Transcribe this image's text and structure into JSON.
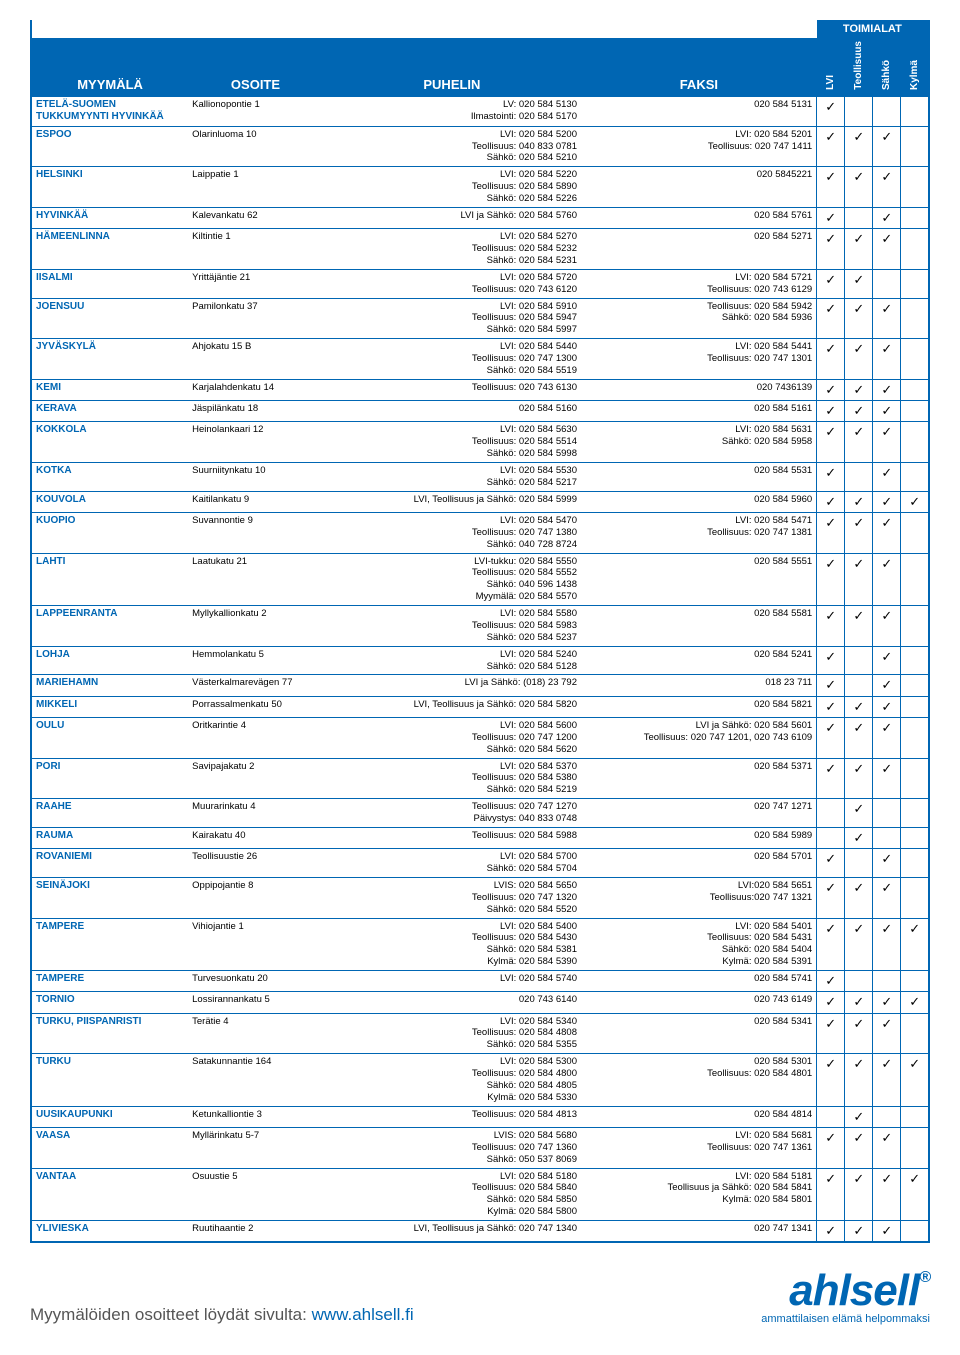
{
  "colors": {
    "brand": "#0066b3",
    "text": "#000000",
    "bg": "#ffffff"
  },
  "header": {
    "topcat": "TOIMIALAT",
    "cols": [
      "MYYMÄLÄ",
      "OSOITE",
      "PUHELIN",
      "FAKSI"
    ],
    "categories": [
      "LVI",
      "Teollisuus",
      "Sähkö",
      "Kylmä"
    ]
  },
  "rows": [
    {
      "store": "Etelä-Suomen Tukkumyynti\nHYVINKÄÄ",
      "addr": "Kallionopontie 1",
      "phone": "LV: 020 584 5130\nIlmastointi: 020 584 5170",
      "fax": "020 584 5131",
      "c": [
        1,
        0,
        0,
        0
      ]
    },
    {
      "store": "ESPOO",
      "addr": "Olarinluoma 10",
      "phone": "LVI: 020 584 5200\nTeollisuus: 040 833 0781\nSähkö: 020 584 5210",
      "fax": "LVI: 020 584 5201\nTeollisuus: 020 747 1411",
      "c": [
        1,
        1,
        1,
        0
      ]
    },
    {
      "store": "HELSINKI",
      "addr": "Laippatie 1",
      "phone": "LVI: 020 584 5220\nTeollisuus: 020 584 5890\nSähkö: 020 584 5226",
      "fax": "020 5845221",
      "c": [
        1,
        1,
        1,
        0
      ]
    },
    {
      "store": "HYVINKÄÄ",
      "addr": "Kalevankatu 62",
      "phone": "LVI ja Sähkö: 020 584 5760",
      "fax": "020 584 5761",
      "c": [
        1,
        0,
        1,
        0
      ]
    },
    {
      "store": "HÄMEENLINNA",
      "addr": "Kiltintie 1",
      "phone": "LVI: 020 584 5270\nTeollisuus: 020 584 5232\nSähkö: 020 584 5231",
      "fax": "020 584 5271",
      "c": [
        1,
        1,
        1,
        0
      ]
    },
    {
      "store": "IISALMI",
      "addr": "Yrittäjäntie 21",
      "phone": "LVI: 020 584 5720\nTeollisuus: 020 743 6120",
      "fax": "LVI: 020 584 5721\nTeollisuus: 020 743 6129",
      "c": [
        1,
        1,
        0,
        0
      ]
    },
    {
      "store": "JOENSUU",
      "addr": "Pamilonkatu 37",
      "phone": "LVI: 020 584 5910\nTeollisuus: 020 584 5947\nSähkö: 020 584 5997",
      "fax": "Teollisuus: 020 584 5942\nSähkö: 020 584 5936",
      "c": [
        1,
        1,
        1,
        0
      ]
    },
    {
      "store": "JYVÄSKYLÄ",
      "addr": "Ahjokatu 15 B",
      "phone": "LVI: 020 584 5440\nTeollisuus: 020 747 1300\nSähkö: 020 584 5519",
      "fax": "LVI: 020 584 5441\nTeollisuus: 020 747 1301",
      "c": [
        1,
        1,
        1,
        0
      ]
    },
    {
      "store": "KEMI",
      "addr": "Karjalahdenkatu 14",
      "phone": "Teollisuus: 020 743 6130",
      "fax": "020 7436139",
      "c": [
        1,
        1,
        1,
        0
      ]
    },
    {
      "store": "KERAVA",
      "addr": "Jäspilänkatu 18",
      "phone": "020 584 5160",
      "fax": "020 584 5161",
      "c": [
        1,
        1,
        1,
        0
      ]
    },
    {
      "store": "KOKKOLA",
      "addr": "Heinolankaari 12",
      "phone": "LVI: 020 584 5630\nTeollisuus: 020 584 5514\nSähkö: 020 584 5998",
      "fax": "LVI: 020 584 5631\nSähkö: 020 584 5958",
      "c": [
        1,
        1,
        1,
        0
      ]
    },
    {
      "store": "KOTKA",
      "addr": "Suurniitynkatu 10",
      "phone": "LVI: 020 584 5530\nSähkö: 020 584 5217",
      "fax": "020 584 5531",
      "c": [
        1,
        0,
        1,
        0
      ]
    },
    {
      "store": "KOUVOLA",
      "addr": "Kaitilankatu 9",
      "phone": "LVI, Teollisuus ja Sähkö: 020 584 5999",
      "fax": "020 584 5960",
      "c": [
        1,
        1,
        1,
        1
      ]
    },
    {
      "store": "KUOPIO",
      "addr": "Suvannontie 9",
      "phone": "LVI: 020 584 5470\nTeollisuus: 020 747 1380\nSähkö: 040 728 8724",
      "fax": "LVI: 020 584 5471\nTeollisuus: 020 747 1381",
      "c": [
        1,
        1,
        1,
        0
      ]
    },
    {
      "store": "LAHTI",
      "addr": "Laatukatu 21",
      "phone": "LVI-tukku: 020 584 5550\nTeollisuus: 020 584 5552\nSähkö: 040 596 1438\nMyymälä: 020 584 5570",
      "fax": "020 584 5551",
      "c": [
        1,
        1,
        1,
        0
      ]
    },
    {
      "store": "LAPPEENRANTA",
      "addr": "Myllykallionkatu 2",
      "phone": "LVI: 020 584 5580\nTeollisuus: 020 584 5983\nSähkö: 020 584 5237",
      "fax": "020 584 5581",
      "c": [
        1,
        1,
        1,
        0
      ]
    },
    {
      "store": "LOHJA",
      "addr": "Hemmolankatu 5",
      "phone": "LVI: 020 584 5240\nSähkö: 020 584 5128",
      "fax": "020 584 5241",
      "c": [
        1,
        0,
        1,
        0
      ]
    },
    {
      "store": "MARIEHAMN",
      "addr": "Västerkalmarevägen 77",
      "phone": "LVI ja Sähkö: (018) 23 792",
      "fax": "018 23 711",
      "c": [
        1,
        0,
        1,
        0
      ]
    },
    {
      "store": "MIKKELI",
      "addr": "Porrassalmenkatu 50",
      "phone": "LVI, Teollisuus ja Sähkö: 020 584 5820",
      "fax": "020 584 5821",
      "c": [
        1,
        1,
        1,
        0
      ]
    },
    {
      "store": "OULU",
      "addr": "Oritkarintie 4",
      "phone": "LVI: 020 584 5600\nTeollisuus: 020 747 1200\nSähkö: 020 584 5620",
      "fax": "LVI ja Sähkö: 020 584 5601\nTeollisuus: 020 747 1201, 020 743 6109",
      "c": [
        1,
        1,
        1,
        0
      ]
    },
    {
      "store": "PORI",
      "addr": "Savipajakatu 2",
      "phone": "LVI: 020 584 5370\nTeollisuus: 020 584 5380\nSähkö: 020 584 5219",
      "fax": "020 584 5371",
      "c": [
        1,
        1,
        1,
        0
      ]
    },
    {
      "store": "RAAHE",
      "addr": "Muurarinkatu 4",
      "phone": "Teollisuus: 020 747 1270\nPäivystys: 040 833 0748",
      "fax": "020 747 1271",
      "c": [
        0,
        1,
        0,
        0
      ]
    },
    {
      "store": "RAUMA",
      "addr": "Kairakatu 40",
      "phone": "Teollisuus: 020 584 5988",
      "fax": "020 584 5989",
      "c": [
        0,
        1,
        0,
        0
      ]
    },
    {
      "store": "ROVANIEMI",
      "addr": "Teollisuustie 26",
      "phone": "LVI: 020 584 5700\nSähkö: 020 584 5704",
      "fax": "020 584 5701",
      "c": [
        1,
        0,
        1,
        0
      ]
    },
    {
      "store": "SEINÄJOKI",
      "addr": "Oppipojantie 8",
      "phone": "LVIS: 020 584 5650\nTeollisuus: 020 747 1320\nSähkö: 020 584 5520",
      "fax": "LVI:020 584 5651\nTeollisuus:020 747 1321",
      "c": [
        1,
        1,
        1,
        0
      ]
    },
    {
      "store": "TAMPERE",
      "addr": "Vihiojantie 1",
      "phone": "LVI: 020 584 5400\nTeollisuus: 020 584 5430\nSähkö: 020 584 5381\nKylmä: 020 584 5390",
      "fax": "LVI: 020 584 5401\nTeollisuus: 020 584 5431\nSähkö: 020 584 5404\nKylmä: 020 584 5391",
      "c": [
        1,
        1,
        1,
        1
      ]
    },
    {
      "store": "TAMPERE",
      "addr": "Turvesuonkatu 20",
      "phone": "LVI: 020 584 5740",
      "fax": "020 584 5741",
      "c": [
        1,
        0,
        0,
        0
      ]
    },
    {
      "store": "TORNIO",
      "addr": "Lossirannankatu 5",
      "phone": "020 743 6140",
      "fax": "020 743 6149",
      "c": [
        1,
        1,
        1,
        1
      ]
    },
    {
      "store": "TURKU,\nPIISPANRISTI",
      "addr": "Terätie 4",
      "phone": "LVI: 020 584 5340\nTeollisuus: 020 584 4808\nSähkö: 020 584 5355",
      "fax": "020 584 5341",
      "c": [
        1,
        1,
        1,
        0
      ]
    },
    {
      "store": "TURKU",
      "addr": "Satakunnantie 164",
      "phone": "LVI: 020 584 5300\nTeollisuus: 020 584 4800\nSähkö: 020 584 4805\nKylmä: 020 584 5330",
      "fax": "020 584 5301\nTeollisuus: 020 584 4801",
      "c": [
        1,
        1,
        1,
        1
      ]
    },
    {
      "store": "UUSIKAUPUNKI",
      "addr": "Ketunkalliontie 3",
      "phone": "Teollisuus: 020 584 4813",
      "fax": "020 584 4814",
      "c": [
        0,
        1,
        0,
        0
      ]
    },
    {
      "store": "VAASA",
      "addr": "Myllärinkatu 5-7",
      "phone": "LVIS: 020 584 5680\nTeollisuus: 020 747 1360\nSähkö: 050 537 8069",
      "fax": "LVI: 020 584 5681\nTeollisuus: 020 747 1361",
      "c": [
        1,
        1,
        1,
        0
      ]
    },
    {
      "store": "VANTAA",
      "addr": "Osuustie 5",
      "phone": "LVI: 020 584 5180\nTeollisuus: 020 584 5840\nSähkö: 020 584 5850\nKylmä: 020 584 5800",
      "fax": "LVI: 020 584 5181\nTeollisuus ja Sähkö: 020 584 5841\nKylmä: 020 584 5801",
      "c": [
        1,
        1,
        1,
        1
      ]
    },
    {
      "store": "YLIVIESKA",
      "addr": "Ruutihaantie 2",
      "phone": "LVI, Teollisuus ja Sähkö: 020 747 1340",
      "fax": "020 747 1341",
      "c": [
        1,
        1,
        1,
        0
      ]
    }
  ],
  "footer": {
    "text_prefix": "Myymälöiden osoitteet löydät sivulta: ",
    "link_text": "www.ahlsell.fi",
    "brand": "ahlsell",
    "tagline": "ammattilaisen elämä helpommaksi"
  }
}
